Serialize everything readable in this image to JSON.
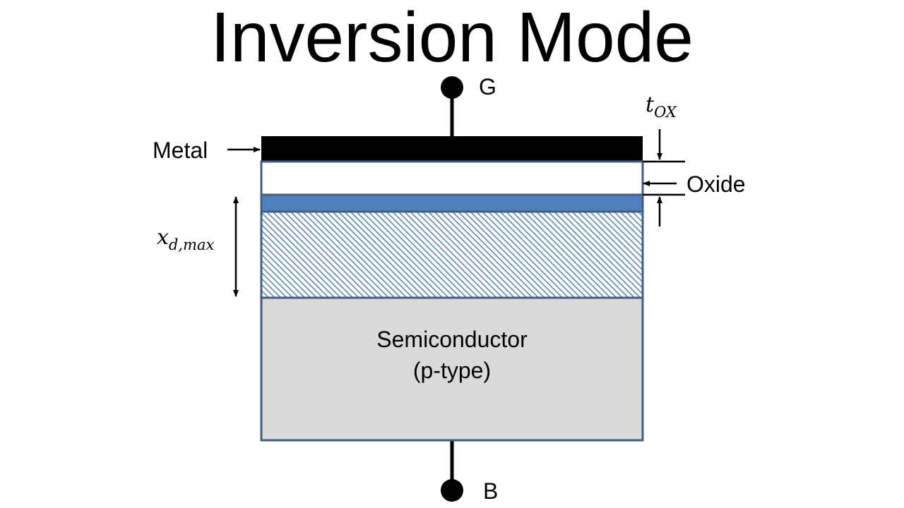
{
  "title": "Inversion Mode",
  "terminals": {
    "gate": "G",
    "body": "B"
  },
  "labels": {
    "metal": "Metal",
    "oxide": "Oxide",
    "tox_base": "t",
    "tox_sub": "OX",
    "xd_base": "x",
    "xd_sub": "d,max",
    "semiconductor_line1": "Semiconductor",
    "semiconductor_line2": "(p-type)"
  },
  "colors": {
    "metal": "#000000",
    "oxide": "#ffffff",
    "inversion_layer": "#4f7fbf",
    "depletion_hatch": "#4f7fbf",
    "semiconductor": "#d9d9d9",
    "border": "#41607f"
  }
}
